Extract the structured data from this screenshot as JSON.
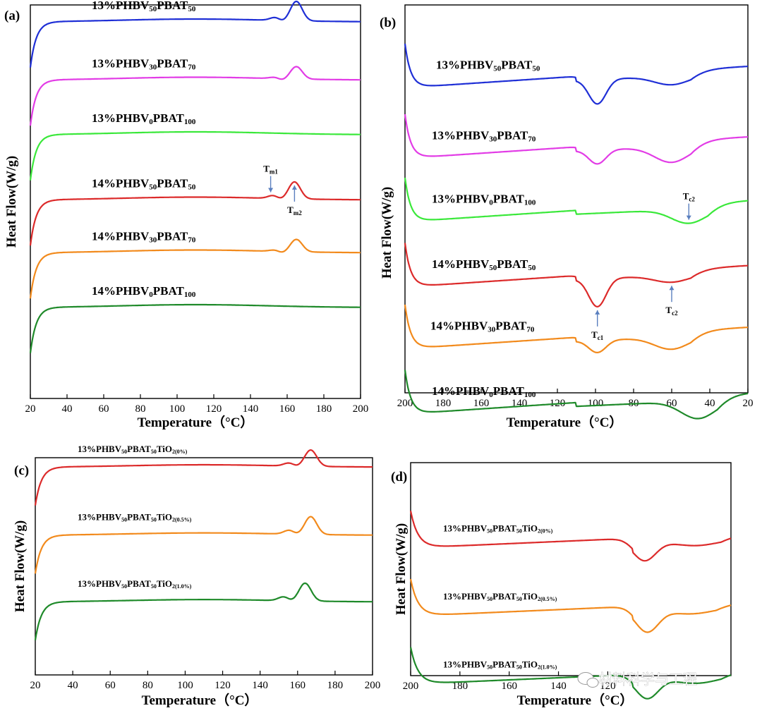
{
  "watermark": "材料科学与工程",
  "chart_data": [
    {
      "panel": "(a)",
      "type": "line",
      "xlabel": "Temperature（°C）",
      "ylabel": "Heat Flow(W/g)",
      "xlim": [
        20,
        200
      ],
      "x_reversed": false,
      "xticks": [
        20,
        40,
        60,
        80,
        100,
        120,
        140,
        160,
        180,
        200
      ],
      "series": [
        {
          "name": "13%PHBV50PBAT50",
          "label": {
            "pre": "13%PHBV",
            "s1": "50",
            "mid": "PBAT",
            "s2": "50",
            "post": ""
          },
          "color": "#1f2fd6",
          "offset": 9.0,
          "curve": "heating",
          "peak": 165,
          "peak_height": 0.55,
          "shoulder_height": 0.1
        },
        {
          "name": "13%PHBV30PBAT70",
          "label": {
            "pre": "13%PHBV",
            "s1": "30",
            "mid": "PBAT",
            "s2": "70",
            "post": ""
          },
          "color": "#e23ce6",
          "offset": 7.35,
          "curve": "heating",
          "peak": 165,
          "peak_height": 0.35,
          "shoulder_height": 0.05
        },
        {
          "name": "13%PHBV0PBAT100",
          "label": {
            "pre": "13%PHBV",
            "s1": "0",
            "mid": "PBAT",
            "s2": "100",
            "post": ""
          },
          "color": "#3ae83a",
          "offset": 5.8,
          "curve": "heating",
          "peak": 165,
          "peak_height": 0.0,
          "shoulder_height": 0.0
        },
        {
          "name": "14%PHBV50PBAT50",
          "label": {
            "pre": "14%PHBV",
            "s1": "50",
            "mid": "PBAT",
            "s2": "50",
            "post": ""
          },
          "color": "#dc2a2a",
          "offset": 3.95,
          "curve": "heating",
          "peak": 164,
          "peak_height": 0.48,
          "shoulder_height": 0.1
        },
        {
          "name": "14%PHBV30PBAT70",
          "label": {
            "pre": "14%PHBV",
            "s1": "30",
            "mid": "PBAT",
            "s2": "70",
            "post": ""
          },
          "color": "#f28a1c",
          "offset": 2.45,
          "curve": "heating",
          "peak": 165,
          "peak_height": 0.35,
          "shoulder_height": 0.05
        },
        {
          "name": "14%PHBV0PBAT100",
          "label": {
            "pre": "14%PHBV",
            "s1": "0",
            "mid": "PBAT",
            "s2": "100",
            "post": ""
          },
          "color": "#1f8a2a",
          "offset": 0.9,
          "curve": "heating",
          "peak": 165,
          "peak_height": 0.0,
          "shoulder_height": 0.0
        }
      ],
      "annotations": [
        {
          "text": "T",
          "sub": "m1",
          "x": 151,
          "series": 3,
          "direction": "down"
        },
        {
          "text": "T",
          "sub": "m2",
          "x": 164,
          "series": 3,
          "direction": "up"
        }
      ]
    },
    {
      "panel": "(b)",
      "type": "line",
      "xlabel": "Temperature（°C）",
      "ylabel": "Heat Flow(W/g)",
      "xlim": [
        200,
        20
      ],
      "x_reversed": true,
      "xticks": [
        200,
        180,
        160,
        140,
        120,
        100,
        80,
        60,
        40,
        20
      ],
      "series": [
        {
          "name": "13%PHBV50PBAT50",
          "label": {
            "pre": "13%PHBV",
            "s1": "50",
            "mid": "PBAT",
            "s2": "50",
            "post": ""
          },
          "color": "#1f2fd6",
          "offset": 9.4,
          "curve": "cooling",
          "tc1": 99,
          "tc1_depth": 0.7,
          "tc2": 60,
          "tc2_depth": 0.25
        },
        {
          "name": "13%PHBV30PBAT70",
          "label": {
            "pre": "13%PHBV",
            "s1": "30",
            "mid": "PBAT",
            "s2": "70",
            "post": ""
          },
          "color": "#e23ce6",
          "offset": 7.4,
          "curve": "cooling",
          "tc1": 99,
          "tc1_depth": 0.4,
          "tc2": 60,
          "tc2_depth": 0.45
        },
        {
          "name": "13%PHBV0PBAT100",
          "label": {
            "pre": "13%PHBV",
            "s1": "0",
            "mid": "PBAT",
            "s2": "100",
            "post": ""
          },
          "color": "#3ae83a",
          "offset": 5.6,
          "curve": "cooling",
          "tc1": 99,
          "tc1_depth": 0.0,
          "tc2": 51,
          "tc2_depth": 0.4
        },
        {
          "name": "14%PHBV50PBAT50",
          "label": {
            "pre": "14%PHBV",
            "s1": "50",
            "mid": "PBAT",
            "s2": "50",
            "post": ""
          },
          "color": "#dc2a2a",
          "offset": 3.75,
          "curve": "cooling",
          "tc1": 99,
          "tc1_depth": 0.8,
          "tc2": 60,
          "tc2_depth": 0.2
        },
        {
          "name": "14%PHBV30PBAT70",
          "label": {
            "pre": "14%PHBV",
            "s1": "30",
            "mid": "PBAT",
            "s2": "70",
            "post": ""
          },
          "color": "#f28a1c",
          "offset": 2.0,
          "curve": "cooling",
          "tc1": 99,
          "tc1_depth": 0.35,
          "tc2": 60,
          "tc2_depth": 0.35
        },
        {
          "name": "14%PHBV0PBAT100",
          "label": {
            "pre": "14%PHBV",
            "s1": "0",
            "mid": "PBAT",
            "s2": "100",
            "post": ""
          },
          "color": "#1f8a2a",
          "offset": 0.15,
          "curve": "cooling",
          "tc1": 99,
          "tc1_depth": 0.0,
          "tc2": 46,
          "tc2_depth": 0.5
        }
      ],
      "annotations": [
        {
          "text": "T",
          "sub": "c2",
          "x": 51,
          "series": 2,
          "direction": "down"
        },
        {
          "text": "T",
          "sub": "c1",
          "x": 99,
          "series": 3,
          "direction": "up"
        },
        {
          "text": "T",
          "sub": "c2",
          "x": 60,
          "series": 3,
          "direction": "up"
        }
      ]
    },
    {
      "panel": "(c)",
      "type": "line",
      "xlabel": "Temperature（°C）",
      "ylabel": "Heat Flow(W/g)",
      "xlim": [
        20,
        200
      ],
      "x_reversed": false,
      "xticks": [
        20,
        40,
        60,
        80,
        100,
        120,
        140,
        160,
        180,
        200
      ],
      "series": [
        {
          "name": "13%PHBV50PBAT50TiO2(0%)",
          "label": {
            "pre": "13%PHBV",
            "s1": "50",
            "mid": "PBAT",
            "s2": "50",
            "post": "TiO",
            "s3": "2(0%)"
          },
          "color": "#dc2a2a",
          "offset": 5.5,
          "curve": "heating",
          "peak": 167,
          "peak_height": 0.55,
          "shoulder_height": 0.12
        },
        {
          "name": "13%PHBV50PBAT50TiO2(0.5%)",
          "label": {
            "pre": "13%PHBV",
            "s1": "50",
            "mid": "PBAT",
            "s2": "50",
            "post": "TiO",
            "s3": "2(0.5%)"
          },
          "color": "#f28a1c",
          "offset": 3.2,
          "curve": "heating",
          "peak": 167,
          "peak_height": 0.6,
          "shoulder_height": 0.15
        },
        {
          "name": "13%PHBV50PBAT50TiO2(1.0%)",
          "label": {
            "pre": "13%PHBV",
            "s1": "50",
            "mid": "PBAT",
            "s2": "50",
            "post": "TiO",
            "s3": "2(1.0%)"
          },
          "color": "#1f8a2a",
          "offset": 0.95,
          "curve": "heating",
          "peak": 164,
          "peak_height": 0.6,
          "shoulder_height": 0.15
        }
      ],
      "annotations": []
    },
    {
      "panel": "(d)",
      "type": "line",
      "xlabel": "Temperature（°C）",
      "ylabel": "Heat Flow(W/g)",
      "xlim": [
        200,
        70
      ],
      "x_reversed": true,
      "xticks": [
        200,
        180,
        160,
        140,
        120
      ],
      "series": [
        {
          "name": "13%PHBV50PBAT50TiO2(0%)",
          "label": {
            "pre": "13%PHBV",
            "s1": "50",
            "mid": "PBAT",
            "s2": "50",
            "post": "TiO",
            "s3": "2(0%)"
          },
          "color": "#dc2a2a",
          "offset": 5.3,
          "curve": "cooling",
          "tc1": 105,
          "tc1_depth": 0.65,
          "tc2": 84,
          "tc2_depth": 0.2
        },
        {
          "name": "13%PHBV50PBAT50TiO2(0.5%)",
          "label": {
            "pre": "13%PHBV",
            "s1": "50",
            "mid": "PBAT",
            "s2": "50",
            "post": "TiO",
            "s3": "2(0.5%)"
          },
          "color": "#f28a1c",
          "offset": 3.0,
          "curve": "cooling",
          "tc1": 104,
          "tc1_depth": 0.75,
          "tc2": 86,
          "tc2_depth": 0.2
        },
        {
          "name": "13%PHBV50PBAT50TiO2(1.0%)",
          "label": {
            "pre": "13%PHBV",
            "s1": "50",
            "mid": "PBAT",
            "s2": "50",
            "post": "TiO",
            "s3": "2(1.0%)"
          },
          "color": "#1f8a2a",
          "offset": 0.7,
          "curve": "cooling",
          "tc1": 104,
          "tc1_depth": 0.7,
          "tc2": 84,
          "tc2_depth": 0.25
        }
      ],
      "annotations": []
    }
  ]
}
